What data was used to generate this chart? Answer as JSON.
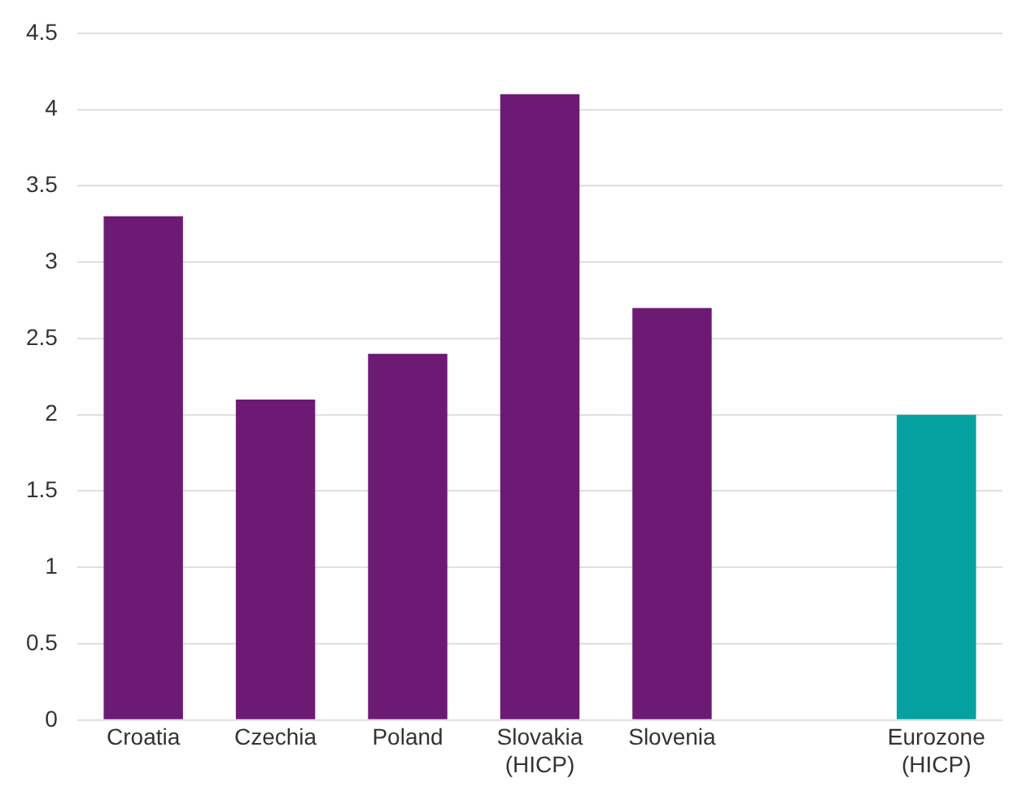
{
  "chart_data": {
    "type": "bar",
    "categories": [
      "Croatia",
      "Czechia",
      "Poland",
      "Slovakia (HICP)",
      "Slovenia",
      null,
      "Eurozone (HICP)"
    ],
    "values": [
      3.3,
      2.1,
      2.4,
      4.1,
      2.7,
      null,
      2.0
    ],
    "colors": [
      "#6d1a75",
      "#6d1a75",
      "#6d1a75",
      "#6d1a75",
      "#6d1a75",
      "#6d1a75",
      "#05a0a0"
    ],
    "ylim": [
      0,
      4.5
    ],
    "yticks": [
      0,
      0.5,
      1,
      1.5,
      2,
      2.5,
      3,
      3.5,
      4,
      4.5
    ],
    "grid": "y",
    "legend": false
  }
}
